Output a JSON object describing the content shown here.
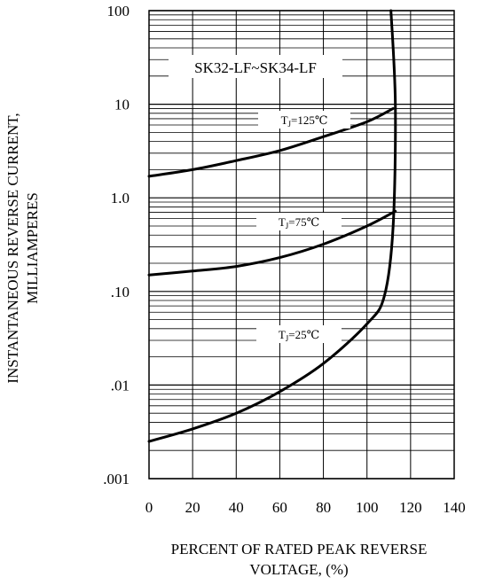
{
  "chart_data": {
    "type": "line",
    "title": "SK32-LF~SK34-LF",
    "xlabel_lines": [
      "PERCENT OF RATED PEAK REVERSE",
      "VOLTAGE, (%)"
    ],
    "ylabel_lines": [
      "INSTANTANEOUS REVERSE CURRENT,",
      "MILLIAMPERES"
    ],
    "x_ticks": [
      "0",
      "20",
      "40",
      "60",
      "80",
      "100",
      "120",
      "140"
    ],
    "x_tick_values": [
      0,
      20,
      40,
      60,
      80,
      100,
      120,
      140
    ],
    "y_ticks": [
      "100",
      "10",
      "1.0",
      ".10",
      ".01",
      ".001"
    ],
    "y_tick_values": [
      100,
      10,
      1,
      0.1,
      0.01,
      0.001
    ],
    "xlim": [
      0,
      140
    ],
    "ylim": [
      0.001,
      100
    ],
    "y_scale": "log",
    "grid": true,
    "legend": "none",
    "series": [
      {
        "name_main": "T",
        "name_sub": "J",
        "name_rest": "=125℃",
        "x": [
          0,
          20,
          40,
          60,
          80,
          100,
          112
        ],
        "y": [
          1.7,
          2.0,
          2.5,
          3.2,
          4.5,
          6.5,
          9.0
        ]
      },
      {
        "name_main": "T",
        "name_sub": "J",
        "name_rest": "=75℃",
        "x": [
          0,
          20,
          40,
          60,
          80,
          100,
          113
        ],
        "y": [
          0.15,
          0.165,
          0.185,
          0.23,
          0.32,
          0.5,
          0.72
        ]
      },
      {
        "name_main": "T",
        "name_sub": "J",
        "name_rest": "=25℃",
        "x": [
          0,
          20,
          40,
          60,
          80,
          100,
          108,
          112,
          113,
          111
        ],
        "y": [
          0.0025,
          0.0034,
          0.005,
          0.0085,
          0.017,
          0.045,
          0.09,
          0.5,
          10,
          100
        ]
      }
    ]
  }
}
